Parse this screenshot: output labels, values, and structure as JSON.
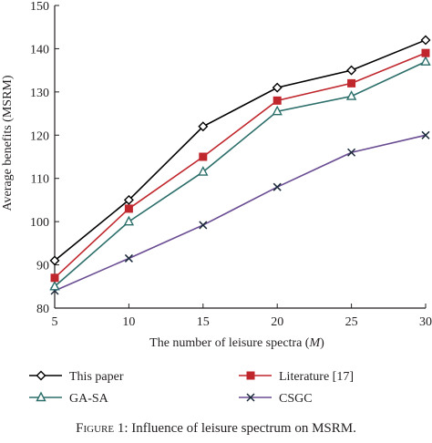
{
  "chart_data": {
    "type": "line",
    "x": [
      5,
      10,
      15,
      20,
      25,
      30
    ],
    "xlabel": "The number of leisure spectra (",
    "xlabel_var": "M",
    "xlabel_end": ")",
    "ylabel": "Average benefits (MSRM)",
    "xlim": [
      5,
      30
    ],
    "ylim": [
      80,
      150
    ],
    "xticks": [
      "5",
      "10",
      "15",
      "20",
      "25",
      "30"
    ],
    "yticks": [
      "80",
      "90",
      "100",
      "110",
      "120",
      "130",
      "140",
      "150"
    ],
    "grid": false,
    "legend_position": "bottom",
    "series": [
      {
        "name": "This paper",
        "color": "#000000",
        "marker": "diamond",
        "values": [
          91,
          105,
          122,
          131,
          135,
          142
        ]
      },
      {
        "name": "Literature [17]",
        "color": "#c0272d",
        "marker": "square",
        "values": [
          87,
          103,
          115,
          128,
          132,
          139
        ]
      },
      {
        "name": "GA-SA",
        "color": "#2b6e6a",
        "marker": "triangle",
        "values": [
          85,
          100,
          111.5,
          125.5,
          129,
          137
        ]
      },
      {
        "name": "CSGC",
        "color": "#6a4c93",
        "marker": "x",
        "values": [
          84,
          91.5,
          99.2,
          108,
          116,
          120
        ]
      }
    ]
  },
  "caption": {
    "figure_word": "Figure 1:",
    "text": " Influence of leisure spectrum on MSRM."
  }
}
